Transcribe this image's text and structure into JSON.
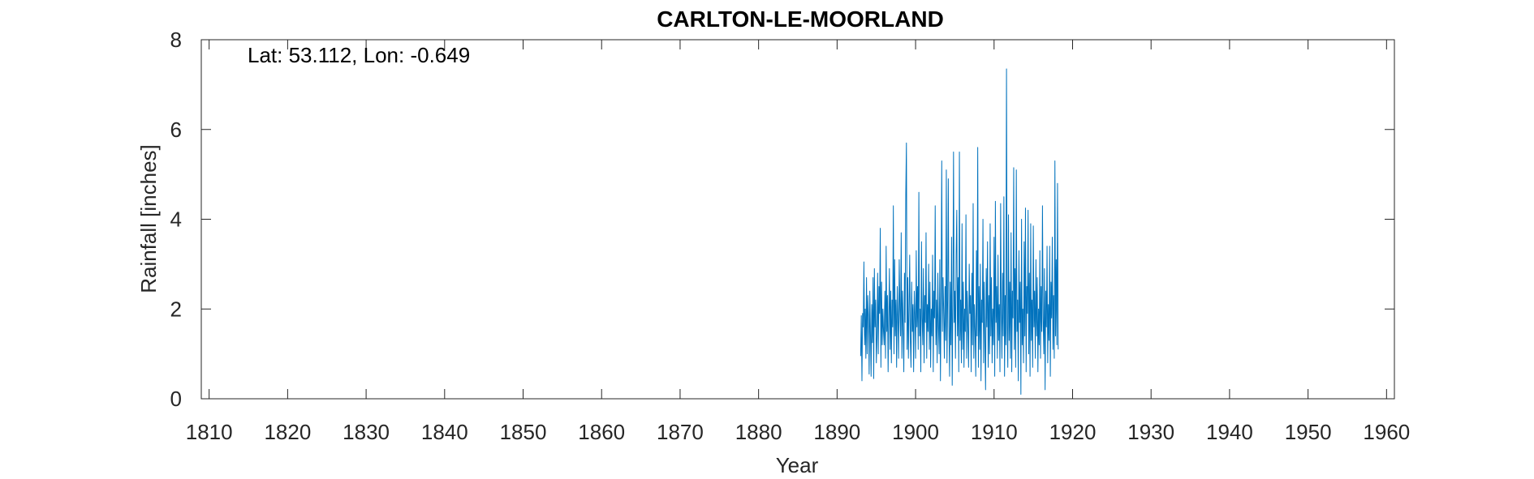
{
  "chart_data": {
    "type": "line",
    "title": "CARLTON-LE-MOORLAND",
    "xlabel": "Year",
    "ylabel": "Rainfall [inches]",
    "annotation": "Lat: 53.112, Lon: -0.649",
    "xlim": [
      1809,
      1961
    ],
    "ylim": [
      0,
      8
    ],
    "xticks": [
      1810,
      1820,
      1830,
      1840,
      1850,
      1860,
      1870,
      1880,
      1890,
      1900,
      1910,
      1920,
      1930,
      1940,
      1950,
      1960
    ],
    "yticks": [
      0,
      2,
      4,
      6,
      8
    ],
    "xtick_labels": [
      "1810",
      "1820",
      "1830",
      "1840",
      "1850",
      "1860",
      "1870",
      "1880",
      "1890",
      "1900",
      "1910",
      "1920",
      "1930",
      "1940",
      "1950",
      "1960"
    ],
    "ytick_labels": [
      "0",
      "2",
      "4",
      "6",
      "8"
    ],
    "grid": false,
    "box": true,
    "line_color": "#0072BD",
    "series": [
      {
        "x_start": 1893.0,
        "x_step": 0.0833333,
        "values": [
          0.95,
          1.85,
          0.4,
          1.9,
          1.6,
          3.05,
          1.2,
          2.0,
          0.9,
          2.7,
          1.0,
          2.3,
          1.85,
          0.55,
          2.4,
          1.45,
          0.5,
          2.1,
          1.25,
          2.7,
          0.45,
          2.9,
          1.6,
          2.2,
          0.8,
          1.4,
          2.8,
          1.0,
          2.5,
          1.9,
          3.8,
          0.7,
          2.6,
          1.2,
          2.0,
          1.5,
          1.2,
          2.4,
          0.9,
          3.4,
          1.5,
          2.3,
          0.6,
          1.8,
          2.9,
          1.1,
          2.4,
          0.8,
          2.2,
          1.6,
          4.3,
          1.0,
          3.1,
          1.4,
          2.2,
          0.7,
          2.5,
          1.8,
          0.9,
          3.1,
          2.0,
          1.4,
          3.7,
          0.9,
          2.4,
          1.6,
          0.6,
          2.8,
          1.7,
          4.55,
          5.7,
          1.1,
          2.7,
          0.9,
          2.0,
          3.2,
          1.3,
          0.7,
          2.6,
          1.5,
          2.1,
          0.6,
          2.4,
          1.9,
          0.9,
          3.3,
          1.6,
          2.5,
          1.1,
          4.6,
          1.4,
          2.0,
          0.6,
          3.5,
          1.8,
          1.2,
          2.9,
          0.8,
          2.3,
          1.7,
          3.7,
          0.9,
          2.1,
          1.5,
          3.0,
          1.1,
          2.6,
          0.7,
          2.0,
          1.4,
          3.2,
          0.6,
          2.4,
          1.8,
          4.3,
          1.2,
          2.2,
          0.8,
          2.8,
          1.6,
          1.0,
          3.1,
          0.4,
          2.3,
          5.3,
          1.5,
          2.7,
          1.9,
          0.9,
          2.5,
          1.3,
          5.1,
          0.8,
          2.2,
          4.9,
          1.6,
          0.5,
          2.6,
          1.2,
          3.6,
          0.3,
          2.1,
          5.5,
          1.7,
          2.4,
          0.9,
          3.2,
          4.2,
          1.4,
          2.7,
          0.6,
          5.5,
          1.3,
          2.2,
          0.8,
          3.9,
          1.1,
          2.6,
          0.7,
          2.0,
          1.5,
          4.1,
          0.9,
          2.4,
          1.6,
          0.7,
          3.0,
          1.9,
          2.3,
          0.6,
          2.8,
          1.2,
          4.35,
          0.9,
          2.1,
          1.5,
          0.5,
          3.3,
          1.4,
          5.6,
          0.7,
          2.5,
          1.1,
          3.0,
          0.4,
          2.2,
          1.7,
          4.0,
          0.8,
          2.6,
          1.3,
          0.2,
          2.9,
          1.6,
          3.5,
          0.7,
          2.3,
          1.0,
          3.9,
          1.4,
          2.7,
          0.8,
          2.0,
          1.2,
          3.6,
          0.5,
          4.4,
          1.7,
          2.5,
          0.9,
          3.2,
          1.3,
          2.1,
          0.6,
          4.35,
          1.9,
          0.9,
          2.8,
          1.4,
          4.5,
          0.5,
          2.3,
          1.2,
          7.35,
          1.6,
          0.7,
          4.1,
          1.3,
          2.6,
          0.9,
          3.7,
          0.6,
          2.4,
          1.8,
          5.15,
          1.1,
          2.9,
          0.7,
          5.1,
          1.5,
          2.2,
          0.4,
          3.3,
          1.7,
          2.6,
          0.1,
          4.0,
          1.2,
          2.0,
          0.8,
          3.5,
          1.4,
          4.25,
          0.6,
          2.5,
          1.9,
          4.2,
          1.0,
          2.8,
          0.5,
          3.9,
          1.3,
          2.2,
          0.7,
          3.85,
          1.6,
          2.4,
          0.9,
          3.1,
          1.4,
          2.7,
          0.6,
          2.0,
          1.2,
          3.3,
          0.9,
          2.5,
          1.5,
          4.3,
          1.8,
          1.0,
          2.9,
          0.2,
          2.4,
          1.6,
          3.4,
          0.8,
          2.1,
          1.3,
          3.4,
          0.5,
          2.6,
          1.8,
          3.6,
          1.1,
          2.3,
          0.9,
          5.3,
          1.4,
          3.1,
          1.2,
          4.8,
          1.1
        ]
      }
    ]
  }
}
